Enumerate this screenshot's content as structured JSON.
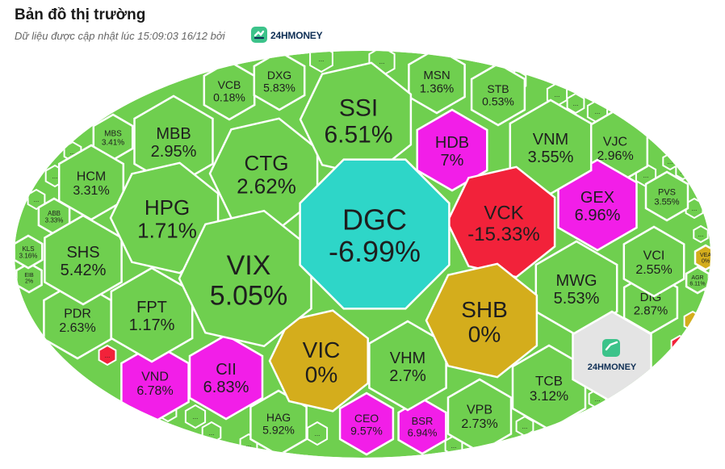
{
  "header": {
    "title": "Bản đồ thị trường",
    "subtitle": "Dữ liệu được cập nhật lúc 15:09:03 16/12 bởi",
    "brand": "24HMONEY"
  },
  "colors": {
    "up": "#6fcf4f",
    "down": "#f2223a",
    "ceiling": "#f21ee8",
    "floor": "#2ed6c8",
    "ref": "#d4ad1c",
    "logo_bg": "#e4e4e4",
    "stroke": "#ffffff"
  },
  "logo_cell": {
    "text": "24HMONEY"
  },
  "tiles": [
    {
      "name": "DGC",
      "value": "-6.99%",
      "status": "floor"
    },
    {
      "name": "SSI",
      "value": "6.51%",
      "status": "up"
    },
    {
      "name": "VIX",
      "value": "5.05%",
      "status": "up"
    },
    {
      "name": "CTG",
      "value": "2.62%",
      "status": "up"
    },
    {
      "name": "HPG",
      "value": "1.71%",
      "status": "up"
    },
    {
      "name": "VCK",
      "value": "-15.33%",
      "status": "down"
    },
    {
      "name": "SHB",
      "value": "0%",
      "status": "ref"
    },
    {
      "name": "VIC",
      "value": "0%",
      "status": "ref"
    },
    {
      "name": "MBB",
      "value": "2.95%",
      "status": "up"
    },
    {
      "name": "HDB",
      "value": "7%",
      "status": "ceiling"
    },
    {
      "name": "GEX",
      "value": "6.96%",
      "status": "ceiling"
    },
    {
      "name": "MWG",
      "value": "5.53%",
      "status": "up"
    },
    {
      "name": "VNM",
      "value": "3.55%",
      "status": "up"
    },
    {
      "name": "VHM",
      "value": "2.7%",
      "status": "up"
    },
    {
      "name": "FPT",
      "value": "1.17%",
      "status": "up"
    },
    {
      "name": "SHS",
      "value": "5.42%",
      "status": "up"
    },
    {
      "name": "CII",
      "value": "6.83%",
      "status": "ceiling"
    },
    {
      "name": "VND",
      "value": "6.78%",
      "status": "ceiling"
    },
    {
      "name": "TCB",
      "value": "3.12%",
      "status": "up"
    },
    {
      "name": "VPB",
      "value": "2.73%",
      "status": "up"
    },
    {
      "name": "HCM",
      "value": "3.31%",
      "status": "up"
    },
    {
      "name": "PDR",
      "value": "2.63%",
      "status": "up"
    },
    {
      "name": "VCB",
      "value": "0.18%",
      "status": "up"
    },
    {
      "name": "DXG",
      "value": "5.83%",
      "status": "up"
    },
    {
      "name": "MSN",
      "value": "1.36%",
      "status": "up"
    },
    {
      "name": "STB",
      "value": "0.53%",
      "status": "up"
    },
    {
      "name": "VJC",
      "value": "2.96%",
      "status": "up"
    },
    {
      "name": "VCI",
      "value": "2.55%",
      "status": "up"
    },
    {
      "name": "DIG",
      "value": "2.87%",
      "status": "up"
    },
    {
      "name": "HAG",
      "value": "5.92%",
      "status": "up"
    },
    {
      "name": "CEO",
      "value": "9.57%",
      "status": "ceiling"
    },
    {
      "name": "BSR",
      "value": "6.94%",
      "status": "ceiling"
    },
    {
      "name": "MBS",
      "value": "3.41%",
      "status": "up"
    },
    {
      "name": "PVS",
      "value": "3.55%",
      "status": "up"
    },
    {
      "name": "ABB",
      "value": "3.33%",
      "status": "up"
    },
    {
      "name": "KLS",
      "value": "3.16%",
      "status": "up"
    },
    {
      "name": "EIB",
      "value": "2%",
      "status": "up"
    },
    {
      "name": "VEA",
      "value": "0%",
      "status": "ref"
    },
    {
      "name": "AGR",
      "value": "6.11%",
      "status": "up"
    }
  ],
  "small_tiles": [
    {
      "text": "...",
      "status": "up"
    },
    {
      "text": "...",
      "status": "up"
    },
    {
      "text": "...",
      "status": "up"
    },
    {
      "text": "...",
      "status": "up"
    },
    {
      "text": "...",
      "status": "up"
    },
    {
      "text": "...",
      "status": "up"
    },
    {
      "text": "...",
      "status": "up"
    },
    {
      "text": "...",
      "status": "up"
    },
    {
      "text": "...",
      "status": "up"
    },
    {
      "text": "...",
      "status": "up"
    },
    {
      "text": "...",
      "status": "up"
    },
    {
      "text": "...",
      "status": "up"
    },
    {
      "text": "...",
      "status": "up"
    },
    {
      "text": "...",
      "status": "ref"
    },
    {
      "text": "...",
      "status": "down"
    },
    {
      "text": "...",
      "status": "up"
    },
    {
      "text": "...",
      "status": "up"
    },
    {
      "text": "...",
      "status": "up"
    },
    {
      "text": "...",
      "status": "up"
    },
    {
      "text": "...",
      "status": "down"
    },
    {
      "text": "...",
      "status": "up"
    },
    {
      "text": "...",
      "status": "up"
    },
    {
      "text": "...",
      "status": "up"
    },
    {
      "text": "...",
      "status": "up"
    },
    {
      "text": "...",
      "status": "up"
    },
    {
      "text": "...",
      "status": "up"
    },
    {
      "text": "...",
      "status": "up"
    },
    {
      "text": "...",
      "status": "up"
    },
    {
      "text": "...",
      "status": "up"
    },
    {
      "text": "...",
      "status": "up"
    }
  ]
}
